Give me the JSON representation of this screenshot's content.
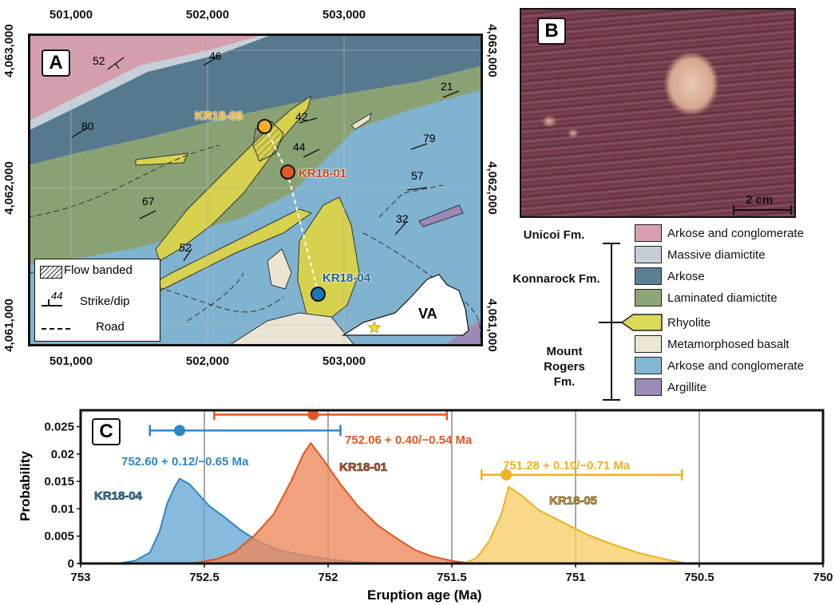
{
  "panel_a": {
    "label": "A",
    "eastings": [
      "501,000",
      "502,000",
      "503,000"
    ],
    "northings": [
      "4,063,000",
      "4,062,000",
      "4,061,000"
    ],
    "samples": [
      {
        "id": "KR18-05",
        "color": "#f0b02a"
      },
      {
        "id": "KR18-01",
        "color": "#e05a22"
      },
      {
        "id": "KR18-04",
        "color": "#1e73be"
      }
    ],
    "strike_dips": [
      "52",
      "46",
      "21",
      "80",
      "42",
      "44",
      "79",
      "57",
      "67",
      "32",
      "52"
    ],
    "key": {
      "flow_banded": "Flow banded",
      "strike_dip_symbol_value": "44",
      "strike_dip": "Strike/dip",
      "road": "Road"
    },
    "state_label": "VA"
  },
  "panel_b": {
    "label": "B",
    "scale_bar": "2 cm"
  },
  "legend": {
    "formations": [
      "Unicoi Fm.",
      "Konnarock Fm.",
      "Mount Rogers Fm."
    ],
    "units": [
      {
        "name": "Arkose and conglomerate",
        "color": "#d8a0ae"
      },
      {
        "name": "Massive diamictite",
        "color": "#c5ced6"
      },
      {
        "name": "Arkose",
        "color": "#5d7f94"
      },
      {
        "name": "Laminated diamictite",
        "color": "#8da576"
      },
      {
        "name": "Rhyolite",
        "color": "#dcd85a"
      },
      {
        "name": "Metamorphosed basalt",
        "color": "#ede6d6"
      },
      {
        "name": "Arkose and conglomerate",
        "color": "#82b8d4"
      },
      {
        "name": "Argillite",
        "color": "#9c8ab8"
      }
    ]
  },
  "chart_data": {
    "type": "area",
    "panel_label": "C",
    "xlabel": "Eruption age (Ma)",
    "ylabel": "Probability",
    "xlim": [
      753,
      750
    ],
    "ylim": [
      0,
      0.028
    ],
    "x_ticks": [
      "753",
      "752.5",
      "752",
      "751.5",
      "751",
      "750.5",
      "750"
    ],
    "y_ticks": [
      "0",
      "0.005",
      "0.01",
      "0.015",
      "0.02",
      "0.025"
    ],
    "grid": "vertical",
    "series": [
      {
        "name": "KR18-04",
        "color": "#2e86c8",
        "fill": "#6aa9d6",
        "x": [
          752.85,
          752.78,
          752.72,
          752.68,
          752.65,
          752.62,
          752.6,
          752.56,
          752.52,
          752.48,
          752.42,
          752.35,
          752.28,
          752.2,
          752.1,
          752.0,
          751.9,
          751.8
        ],
        "y": [
          0,
          0.0005,
          0.002,
          0.006,
          0.011,
          0.014,
          0.0155,
          0.0145,
          0.0125,
          0.0105,
          0.0085,
          0.006,
          0.004,
          0.0025,
          0.0015,
          0.0008,
          0.0003,
          0
        ],
        "age": 752.6,
        "err_young": 751.95,
        "err_old": 752.72,
        "age_label": "752.60 + 0.12/−0.65 Ma"
      },
      {
        "name": "KR18-01",
        "color": "#e0571f",
        "fill": "#ec8a5c",
        "x": [
          752.55,
          752.45,
          752.38,
          752.3,
          752.22,
          752.15,
          752.1,
          752.07,
          752.02,
          751.95,
          751.88,
          751.8,
          751.72,
          751.65,
          751.58,
          751.5,
          751.42
        ],
        "y": [
          0,
          0.0008,
          0.002,
          0.005,
          0.009,
          0.015,
          0.02,
          0.022,
          0.019,
          0.0145,
          0.0105,
          0.007,
          0.0045,
          0.0025,
          0.0013,
          0.0005,
          0
        ],
        "age": 752.06,
        "err_young": 751.52,
        "err_old": 752.46,
        "age_label": "752.06 + 0.40/−0.54 Ma"
      },
      {
        "name": "KR18-05",
        "color": "#f0b020",
        "fill": "#f5cf6a",
        "x": [
          751.45,
          751.4,
          751.35,
          751.3,
          751.27,
          751.22,
          751.15,
          751.05,
          750.95,
          750.85,
          750.75,
          750.65,
          750.55
        ],
        "y": [
          0,
          0.001,
          0.004,
          0.009,
          0.014,
          0.0125,
          0.0098,
          0.0075,
          0.0052,
          0.0035,
          0.002,
          0.0009,
          0
        ],
        "age": 751.28,
        "err_young": 750.57,
        "err_old": 751.38,
        "age_label": "751.28 + 0.10/−0.71 Ma"
      }
    ]
  }
}
